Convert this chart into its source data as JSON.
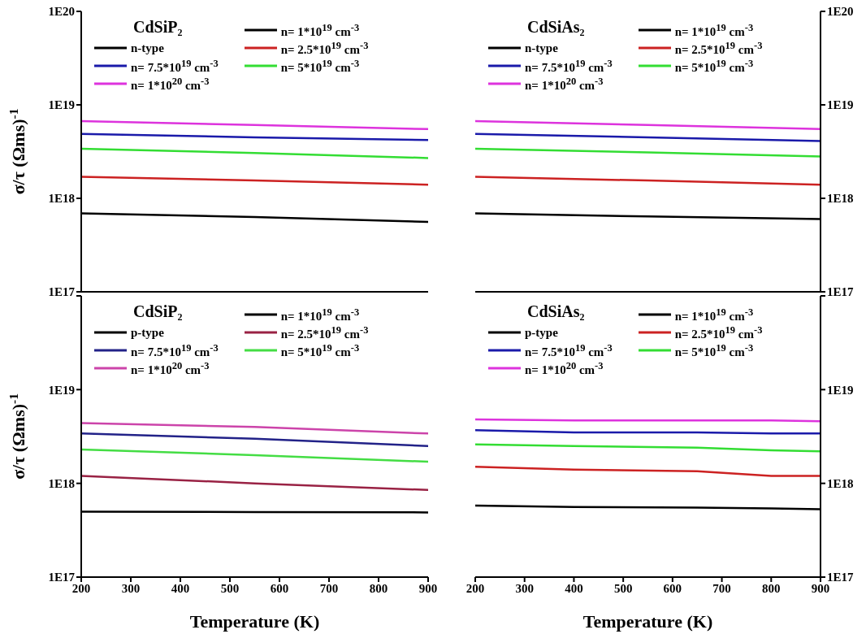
{
  "chart_data": [
    {
      "type": "line",
      "title": "CdSiP₂",
      "ylabel": "σ/τ (Ωms)$^{-1}$",
      "legend_title": "n-type",
      "legend": "top",
      "tick_labels": "y",
      "log": "y",
      "xlim": [
        200,
        900
      ],
      "xticks": [
        200,
        300,
        400,
        500,
        600,
        700,
        800,
        900
      ],
      "ylim": [
        1e+17,
        1e+20
      ],
      "yticks": [
        {
          "value": 1e+17,
          "label": "1E17"
        },
        {
          "value": 1e+18,
          "label": "1E18"
        },
        {
          "value": 1e+19,
          "label": "1E19"
        },
        {
          "value": 1e+20,
          "label": "1E20"
        }
      ],
      "series": [
        {
          "name": "n= 1*10$^{19}$ cm$^{-3}$",
          "color": "#000000",
          "x": [
            200,
            550,
            900
          ],
          "values": [
            6.9e+17,
            6.3e+17,
            5.6e+17
          ]
        },
        {
          "name": "n= 2.5*10$^{19}$ cm$^{-3}$",
          "color": "#cc2222",
          "x": [
            200,
            550,
            900
          ],
          "values": [
            1.7e+18,
            1.55e+18,
            1.4e+18
          ]
        },
        {
          "name": "n= 5*10$^{19}$ cm$^{-3}$",
          "color": "#33dd33",
          "x": [
            200,
            550,
            900
          ],
          "values": [
            3.4e+18,
            3.05e+18,
            2.7e+18
          ]
        },
        {
          "name": "n= 7.5*10$^{19}$ cm$^{-3}$",
          "color": "#1a1aaa",
          "x": [
            200,
            550,
            900
          ],
          "values": [
            4.9e+18,
            4.5e+18,
            4.2e+18
          ]
        },
        {
          "name": "n= 1*10$^{20}$ cm$^{-3}$",
          "color": "#dd33dd",
          "x": [
            200,
            550,
            900
          ],
          "values": [
            6.7e+18,
            6.1e+18,
            5.5e+18
          ]
        }
      ]
    },
    {
      "type": "line",
      "title": "CdSiAs₂",
      "legend_title": "n-type",
      "legend": "top",
      "tick_labels": "y",
      "log": "y",
      "xlim": [
        200,
        900
      ],
      "xticks": [
        200,
        300,
        400,
        500,
        600,
        700,
        800,
        900
      ],
      "ylim": [
        1e+17,
        1e+20
      ],
      "yticks": [
        {
          "value": 1e+17,
          "label": "1E17"
        },
        {
          "value": 1e+18,
          "label": "1E18"
        },
        {
          "value": 1e+19,
          "label": "1E19"
        },
        {
          "value": 1e+20,
          "label": "1E20"
        }
      ],
      "series": [
        {
          "name": "n= 1*10$^{19}$ cm$^{-3}$",
          "color": "#000000",
          "x": [
            200,
            550,
            900
          ],
          "values": [
            6.9e+17,
            6.4e+17,
            6e+17
          ]
        },
        {
          "name": "n= 2.5*10$^{19}$ cm$^{-3}$",
          "color": "#cc2222",
          "x": [
            200,
            550,
            900
          ],
          "values": [
            1.7e+18,
            1.55e+18,
            1.4e+18
          ]
        },
        {
          "name": "n= 5*10$^{19}$ cm$^{-3}$",
          "color": "#33dd33",
          "x": [
            200,
            550,
            900
          ],
          "values": [
            3.4e+18,
            3.1e+18,
            2.8e+18
          ]
        },
        {
          "name": "n= 7.5*10$^{19}$ cm$^{-3}$",
          "color": "#1a1aaa",
          "x": [
            200,
            550,
            900
          ],
          "values": [
            4.9e+18,
            4.5e+18,
            4.1e+18
          ]
        },
        {
          "name": "n= 1*10$^{20}$ cm$^{-3}$",
          "color": "#dd33dd",
          "x": [
            200,
            550,
            900
          ],
          "values": [
            6.7e+18,
            6.1e+18,
            5.5e+18
          ]
        }
      ]
    },
    {
      "type": "line",
      "title": "CdSiP₂",
      "xlabel": "Temperature (K)",
      "ylabel": "σ/τ (Ωms)$^{-1}$",
      "legend_title": "p-type",
      "legend": "top",
      "log": "y",
      "xlim": [
        200,
        900
      ],
      "xticks": [
        200,
        300,
        400,
        500,
        600,
        700,
        800,
        900
      ],
      "ylim": [
        1e+17,
        1e+20
      ],
      "yticks": [
        {
          "value": 1e+17,
          "label": "1E17"
        },
        {
          "value": 1e+18,
          "label": "1E18"
        },
        {
          "value": 1e+19,
          "label": "1E19"
        },
        {
          "value": 1e+20,
          "label": null
        }
      ],
      "series": [
        {
          "name": "n= 1*10$^{19}$ cm$^{-3}$",
          "color": "#000000",
          "x": [
            200,
            550,
            900
          ],
          "values": [
            5e+17,
            4.95e+17,
            4.9e+17
          ]
        },
        {
          "name": "n= 2.5*10$^{19}$ cm$^{-3}$",
          "color": "#992244",
          "x": [
            200,
            550,
            900
          ],
          "values": [
            1.2e+18,
            1e+18,
            8.5e+17
          ]
        },
        {
          "name": "n= 5*10$^{19}$ cm$^{-3}$",
          "color": "#44dd44",
          "x": [
            200,
            550,
            900
          ],
          "values": [
            2.3e+18,
            2e+18,
            1.7e+18
          ]
        },
        {
          "name": "n= 7.5*10$^{19}$ cm$^{-3}$",
          "color": "#222288",
          "x": [
            200,
            550,
            900
          ],
          "values": [
            3.4e+18,
            3e+18,
            2.5e+18
          ]
        },
        {
          "name": "n= 1*10$^{20}$ cm$^{-3}$",
          "color": "#cc44aa",
          "x": [
            200,
            550,
            900
          ],
          "values": [
            4.4e+18,
            4e+18,
            3.4e+18
          ]
        }
      ]
    },
    {
      "type": "line",
      "title": "CdSiAs₂",
      "xlabel": "Temperature (K)",
      "legend_title": "p-type",
      "legend": "top",
      "log": "y",
      "xlim": [
        200,
        900
      ],
      "xticks": [
        200,
        300,
        400,
        500,
        600,
        700,
        800,
        900
      ],
      "ylim": [
        1e+17,
        1e+20
      ],
      "yticks": [
        {
          "value": 1e+17,
          "label": "1E17"
        },
        {
          "value": 1e+18,
          "label": "1E18"
        },
        {
          "value": 1e+19,
          "label": "1E19"
        },
        {
          "value": 1e+20,
          "label": null
        }
      ],
      "series": [
        {
          "name": "n= 1*10$^{19}$ cm$^{-3}$",
          "color": "#000000",
          "x": [
            200,
            400,
            650,
            800,
            900
          ],
          "values": [
            5.8e+17,
            5.6e+17,
            5.5e+17,
            5.4e+17,
            5.3e+17
          ]
        },
        {
          "name": "n= 2.5*10$^{19}$ cm$^{-3}$",
          "color": "#cc2222",
          "x": [
            200,
            400,
            650,
            800,
            900
          ],
          "values": [
            1.5e+18,
            1.4e+18,
            1.35e+18,
            1.2e+18,
            1.2e+18
          ]
        },
        {
          "name": "n= 5*10$^{19}$ cm$^{-3}$",
          "color": "#33dd33",
          "x": [
            200,
            400,
            650,
            800,
            900
          ],
          "values": [
            2.6e+18,
            2.5e+18,
            2.4e+18,
            2.25e+18,
            2.2e+18
          ]
        },
        {
          "name": "n= 7.5*10$^{19}$ cm$^{-3}$",
          "color": "#1a1aaa",
          "x": [
            200,
            400,
            650,
            800,
            900
          ],
          "values": [
            3.7e+18,
            3.5e+18,
            3.5e+18,
            3.4e+18,
            3.4e+18
          ]
        },
        {
          "name": "n= 1*10$^{20}$ cm$^{-3}$",
          "color": "#dd33dd",
          "x": [
            200,
            400,
            650,
            800,
            900
          ],
          "values": [
            4.8e+18,
            4.7e+18,
            4.7e+18,
            4.7e+18,
            4.6e+18
          ]
        }
      ]
    }
  ]
}
